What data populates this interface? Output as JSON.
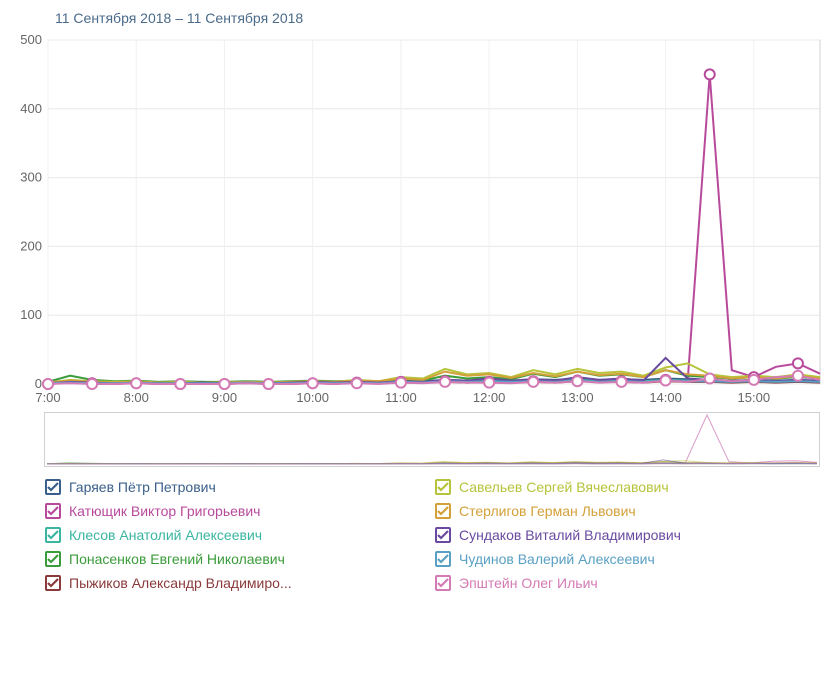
{
  "title": "11 Сентября 2018 – 11 Сентября 2018",
  "chart": {
    "type": "line",
    "background_color": "#ffffff",
    "grid_color": "#e8e8e8",
    "grid_color_v": "#f0f0f0",
    "border_color": "#d0d0d0",
    "ylim": [
      0,
      500
    ],
    "ytick_step": 100,
    "x_ticks": [
      "7:00",
      "8:00",
      "9:00",
      "10:00",
      "11:00",
      "12:00",
      "13:00",
      "14:00",
      "15:00"
    ],
    "x_start": 7.0,
    "x_end": 15.75,
    "marker_radius": 5,
    "axis_label_color": "#666666",
    "axis_font_size": 13,
    "series": [
      {
        "name": "Гаряев Пётр Петрович",
        "color": "#3a5f8a",
        "data": [
          2,
          4,
          3,
          2,
          3,
          2,
          2,
          3,
          2,
          3,
          2,
          3,
          4,
          3,
          4,
          3,
          5,
          4,
          6,
          5,
          6,
          5,
          7,
          6,
          8,
          6,
          7,
          6,
          8,
          7,
          6,
          5,
          6,
          5,
          6,
          5
        ]
      },
      {
        "name": "Катющик Виктор Григорьевич",
        "color": "#b84a9c",
        "data": [
          0,
          2,
          1,
          0,
          1,
          0,
          0,
          1,
          0,
          1,
          0,
          0,
          1,
          0,
          2,
          1,
          3,
          2,
          4,
          2,
          3,
          2,
          4,
          3,
          5,
          3,
          4,
          3,
          6,
          5,
          450,
          20,
          10,
          25,
          30,
          15
        ]
      },
      {
        "name": "Клесов Анатолий Алексеевич",
        "color": "#3ab5a0",
        "data": [
          1,
          3,
          2,
          1,
          2,
          1,
          1,
          2,
          1,
          2,
          1,
          2,
          3,
          2,
          3,
          2,
          4,
          3,
          5,
          4,
          5,
          4,
          5,
          4,
          6,
          5,
          5,
          4,
          6,
          5,
          5,
          4,
          5,
          4,
          5,
          4
        ]
      },
      {
        "name": "Понасенков Евгений Николаевич",
        "color": "#3a9c3a",
        "data": [
          3,
          12,
          6,
          4,
          5,
          3,
          4,
          3,
          3,
          4,
          3,
          4,
          5,
          4,
          5,
          4,
          6,
          5,
          12,
          8,
          10,
          7,
          15,
          10,
          18,
          12,
          14,
          10,
          20,
          12,
          10,
          8,
          10,
          8,
          10,
          8
        ]
      },
      {
        "name": "Пыжиков Александр Владимиро...",
        "color": "#8a3a3a",
        "data": [
          1,
          2,
          1,
          1,
          1,
          1,
          1,
          1,
          1,
          1,
          1,
          1,
          2,
          1,
          2,
          1,
          2,
          2,
          3,
          2,
          3,
          2,
          3,
          2,
          4,
          3,
          3,
          2,
          4,
          3,
          3,
          2,
          3,
          2,
          3,
          2
        ]
      },
      {
        "name": "Савельев Сергей Вячеславович",
        "color": "#b5c43a",
        "data": [
          2,
          6,
          4,
          3,
          4,
          2,
          3,
          2,
          2,
          3,
          2,
          3,
          4,
          3,
          6,
          4,
          10,
          8,
          22,
          14,
          16,
          10,
          20,
          14,
          22,
          16,
          18,
          12,
          24,
          30,
          14,
          10,
          12,
          10,
          14,
          10
        ]
      },
      {
        "name": "Стерлигов Герман Львович",
        "color": "#d4a03a",
        "data": [
          2,
          5,
          3,
          2,
          3,
          2,
          2,
          2,
          2,
          3,
          2,
          3,
          4,
          3,
          5,
          4,
          8,
          6,
          18,
          12,
          14,
          9,
          16,
          11,
          18,
          13,
          15,
          10,
          20,
          14,
          12,
          8,
          10,
          8,
          12,
          8
        ]
      },
      {
        "name": "Сундаков Виталий Владимирович",
        "color": "#6a4aa0",
        "data": [
          1,
          3,
          2,
          1,
          2,
          1,
          1,
          2,
          1,
          2,
          1,
          2,
          3,
          2,
          3,
          2,
          4,
          3,
          6,
          5,
          8,
          5,
          7,
          5,
          10,
          6,
          8,
          5,
          38,
          8,
          6,
          4,
          5,
          4,
          6,
          4
        ]
      },
      {
        "name": "Чудинов Валерий Алексеевич",
        "color": "#5aa0c4",
        "data": [
          1,
          2,
          1,
          1,
          2,
          1,
          1,
          1,
          1,
          2,
          1,
          1,
          2,
          1,
          2,
          1,
          3,
          2,
          4,
          3,
          4,
          3,
          4,
          3,
          5,
          3,
          4,
          3,
          5,
          4,
          4,
          3,
          4,
          3,
          4,
          3
        ]
      },
      {
        "name": "Эпштейн Олег Ильич",
        "color": "#d47ab5",
        "data": [
          0,
          1,
          0,
          0,
          1,
          0,
          0,
          0,
          0,
          1,
          0,
          0,
          1,
          0,
          1,
          0,
          2,
          1,
          3,
          2,
          2,
          1,
          3,
          2,
          4,
          2,
          3,
          2,
          5,
          3,
          8,
          4,
          6,
          10,
          12,
          6
        ]
      }
    ],
    "marker_series_indices": [
      1,
      9
    ]
  },
  "legend": {
    "checkmark_color_inherits": true,
    "label_font_size": 14,
    "columns": [
      [
        0,
        1,
        2,
        3,
        4
      ],
      [
        5,
        6,
        7,
        8,
        9
      ]
    ]
  }
}
